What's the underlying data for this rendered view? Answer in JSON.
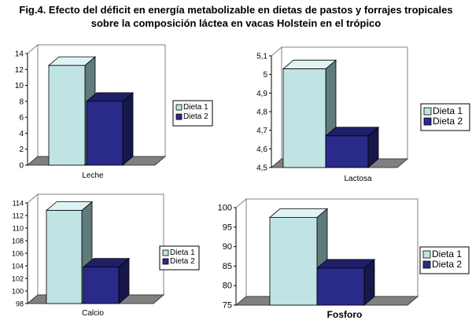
{
  "figure": {
    "title_line1": "Fig.4. Efecto del déficit en energía metabolizable en dietas de pastos y forrajes tropicales",
    "title_line2": "sobre la composición láctea en vacas Holstein en el trópico"
  },
  "colors": {
    "dieta1": "#c0e4e4",
    "dieta2": "#2a2a8a"
  },
  "chart_data": [
    {
      "type": "bar",
      "categories": [
        "Dieta 1",
        "Dieta 2"
      ],
      "values": [
        12.5,
        8.0
      ],
      "xlabel": "Leche",
      "ylim": [
        0,
        14
      ],
      "yticks": [
        "0",
        "2",
        "4",
        "6",
        "8",
        "10",
        "12",
        "14"
      ],
      "legend": [
        "Dieta 1",
        "Dieta 2"
      ],
      "grid": false,
      "legend_placement": "right"
    },
    {
      "type": "bar",
      "categories": [
        "Dieta 1",
        "Dieta 2"
      ],
      "values": [
        5.03,
        4.67
      ],
      "xlabel": "Lactosa",
      "ylim": [
        4.5,
        5.1
      ],
      "yticks": [
        "4,5",
        "4,6",
        "4,7",
        "4,8",
        "4,9",
        "5",
        "5,1"
      ],
      "legend": [
        "Dieta 1",
        "Dieta 2"
      ],
      "grid": false,
      "legend_placement": "right"
    },
    {
      "type": "bar",
      "categories": [
        "Dieta 1",
        "Dieta 2"
      ],
      "values": [
        112.8,
        103.8
      ],
      "xlabel": "Calcio",
      "ylim": [
        98,
        114
      ],
      "yticks": [
        "98",
        "100",
        "102",
        "104",
        "106",
        "108",
        "110",
        "112",
        "114"
      ],
      "legend": [
        "Dieta 1",
        "Dieta 2"
      ],
      "grid": false,
      "legend_placement": "right"
    },
    {
      "type": "bar",
      "categories": [
        "Dieta 1",
        "Dieta 2"
      ],
      "values": [
        97.5,
        84.5
      ],
      "xlabel": "Fosforo",
      "ylim": [
        75,
        100
      ],
      "yticks": [
        "75",
        "80",
        "85",
        "90",
        "95",
        "100"
      ],
      "legend": [
        "Dieta 1",
        "Dieta 2"
      ],
      "grid": false,
      "legend_placement": "right"
    }
  ]
}
